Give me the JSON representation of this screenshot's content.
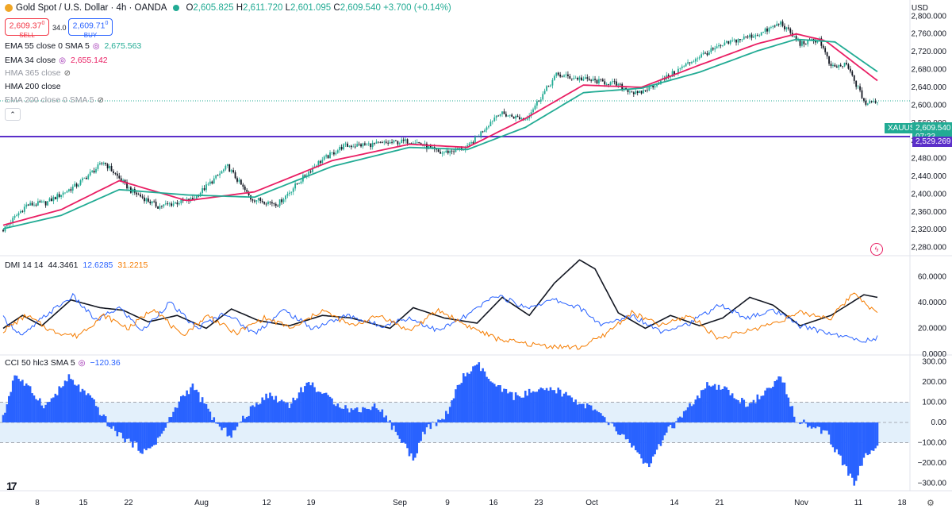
{
  "header": {
    "symbol": "Gold Spot / U.S. Dollar · 4h · OANDA",
    "ohlc": {
      "o_key": "O",
      "o": "2,605.825",
      "h_key": "H",
      "h": "2,611.720",
      "l_key": "L",
      "l": "2,601.095",
      "c_key": "C",
      "c": "2,609.540",
      "change": "+3.700 (+0.14%)"
    },
    "sell_price": "2,609.37",
    "sell_sup": "0",
    "sell_label": "SELL",
    "spread": "34.0",
    "buy_price": "2,609.71",
    "buy_sup": "0",
    "buy_label": "BUY",
    "currency": "USD"
  },
  "legends": {
    "ema55": {
      "label": "EMA 55 close 0 SMA 5",
      "value": "2,675.563"
    },
    "ema34": {
      "label": "EMA 34 close",
      "value": "2,655.142"
    },
    "hma365": {
      "label": "HMA 365 close"
    },
    "hma200": {
      "label": "HMA 200 close"
    },
    "ema200": {
      "label": "EMA 200 close 0 SMA 5"
    },
    "dmi": {
      "label": "DMI 14 14",
      "adx": "44.3461",
      "plus_di": "12.6285",
      "minus_di": "31.2215"
    },
    "cci": {
      "label": "CCI 50 hlc3 SMA 5",
      "value": "−120.36"
    }
  },
  "colors": {
    "up": "#22ab94",
    "down": "#131722",
    "ema34": "#e91e63",
    "ema55": "#22ab94",
    "hline": "#5b2fc9",
    "adx": "#131722",
    "plus_di": "#2962ff",
    "minus_di": "#f57c00",
    "cci": "#2962ff",
    "band": "#e3f0fb"
  },
  "tags": {
    "symbol_tag": "XAUUSD",
    "last_price": "2,609.540",
    "countdown": "07:33",
    "hline_price": "2,529.269"
  },
  "icons": [
    "tradingview-logo-icon",
    "settings-gear-icon",
    "eye-hidden-icon",
    "lightning-icon",
    "collapse-icon"
  ],
  "chart_data": [
    {
      "type": "candlestick",
      "title": "Gold Spot / U.S. Dollar · 4h · OANDA",
      "ylim": [
        2265,
        2822
      ],
      "y_ticks": [
        "2,800.000",
        "2,760.000",
        "2,720.000",
        "2,680.000",
        "2,640.000",
        "2,600.000",
        "2,560.000",
        "2,520.000",
        "2,480.000",
        "2,440.000",
        "2,400.000",
        "2,360.000",
        "2,320.000",
        "2,280.000"
      ],
      "x_ticks": [
        "8",
        "15",
        "22",
        "Aug",
        "12",
        "19",
        "Sep",
        "9",
        "16",
        "23",
        "Oct",
        "14",
        "21",
        "Nov",
        "11",
        "18"
      ],
      "close_path": [
        {
          "i": 0,
          "v": 2320
        },
        {
          "i": 12,
          "v": 2375
        },
        {
          "i": 22,
          "v": 2380
        },
        {
          "i": 38,
          "v": 2420
        },
        {
          "i": 52,
          "v": 2472
        },
        {
          "i": 66,
          "v": 2408
        },
        {
          "i": 80,
          "v": 2372
        },
        {
          "i": 98,
          "v": 2388
        },
        {
          "i": 116,
          "v": 2462
        },
        {
          "i": 128,
          "v": 2390
        },
        {
          "i": 142,
          "v": 2378
        },
        {
          "i": 162,
          "v": 2468
        },
        {
          "i": 176,
          "v": 2508
        },
        {
          "i": 192,
          "v": 2512
        },
        {
          "i": 212,
          "v": 2520
        },
        {
          "i": 226,
          "v": 2492
        },
        {
          "i": 240,
          "v": 2504
        },
        {
          "i": 256,
          "v": 2582
        },
        {
          "i": 270,
          "v": 2568
        },
        {
          "i": 286,
          "v": 2668
        },
        {
          "i": 300,
          "v": 2658
        },
        {
          "i": 316,
          "v": 2648
        },
        {
          "i": 328,
          "v": 2624
        },
        {
          "i": 344,
          "v": 2665
        },
        {
          "i": 360,
          "v": 2710
        },
        {
          "i": 376,
          "v": 2742
        },
        {
          "i": 392,
          "v": 2762
        },
        {
          "i": 402,
          "v": 2785
        },
        {
          "i": 412,
          "v": 2738
        },
        {
          "i": 422,
          "v": 2748
        },
        {
          "i": 428,
          "v": 2684
        },
        {
          "i": 436,
          "v": 2690
        },
        {
          "i": 446,
          "v": 2602
        },
        {
          "i": 452,
          "v": 2610
        }
      ],
      "series": [
        {
          "name": "EMA 34 close",
          "color": "#e91e63",
          "points": [
            {
              "i": 0,
              "v": 2330
            },
            {
              "i": 30,
              "v": 2365
            },
            {
              "i": 60,
              "v": 2430
            },
            {
              "i": 95,
              "v": 2385
            },
            {
              "i": 130,
              "v": 2405
            },
            {
              "i": 170,
              "v": 2475
            },
            {
              "i": 210,
              "v": 2512
            },
            {
              "i": 240,
              "v": 2505
            },
            {
              "i": 270,
              "v": 2570
            },
            {
              "i": 300,
              "v": 2645
            },
            {
              "i": 330,
              "v": 2640
            },
            {
              "i": 360,
              "v": 2690
            },
            {
              "i": 390,
              "v": 2738
            },
            {
              "i": 410,
              "v": 2760
            },
            {
              "i": 425,
              "v": 2745
            },
            {
              "i": 452,
              "v": 2655
            }
          ]
        },
        {
          "name": "EMA 55 close 0 SMA 5",
          "color": "#22ab94",
          "points": [
            {
              "i": 0,
              "v": 2322
            },
            {
              "i": 30,
              "v": 2352
            },
            {
              "i": 60,
              "v": 2410
            },
            {
              "i": 95,
              "v": 2398
            },
            {
              "i": 130,
              "v": 2393
            },
            {
              "i": 170,
              "v": 2462
            },
            {
              "i": 210,
              "v": 2505
            },
            {
              "i": 240,
              "v": 2500
            },
            {
              "i": 270,
              "v": 2550
            },
            {
              "i": 300,
              "v": 2628
            },
            {
              "i": 330,
              "v": 2638
            },
            {
              "i": 360,
              "v": 2674
            },
            {
              "i": 390,
              "v": 2722
            },
            {
              "i": 410,
              "v": 2748
            },
            {
              "i": 430,
              "v": 2742
            },
            {
              "i": 452,
              "v": 2675
            }
          ]
        }
      ],
      "hline": {
        "value": 2529.269,
        "label": "2,529.269"
      },
      "last": {
        "value": 2609.54,
        "label": "2,609.540"
      }
    },
    {
      "type": "line",
      "title": "DMI 14 14",
      "ylim": [
        0,
        75
      ],
      "y_ticks": [
        "60.0000",
        "40.0000",
        "20.0000",
        "0.0000"
      ],
      "series": [
        {
          "name": "ADX",
          "color": "#131722",
          "width": 1.6,
          "points": [
            {
              "i": 0,
              "v": 20
            },
            {
              "i": 10,
              "v": 30
            },
            {
              "i": 20,
              "v": 22
            },
            {
              "i": 35,
              "v": 42
            },
            {
              "i": 50,
              "v": 36
            },
            {
              "i": 62,
              "v": 34
            },
            {
              "i": 75,
              "v": 25
            },
            {
              "i": 90,
              "v": 30
            },
            {
              "i": 105,
              "v": 20
            },
            {
              "i": 118,
              "v": 35
            },
            {
              "i": 132,
              "v": 26
            },
            {
              "i": 148,
              "v": 22
            },
            {
              "i": 165,
              "v": 30
            },
            {
              "i": 180,
              "v": 28
            },
            {
              "i": 200,
              "v": 20
            },
            {
              "i": 212,
              "v": 36
            },
            {
              "i": 228,
              "v": 28
            },
            {
              "i": 245,
              "v": 24
            },
            {
              "i": 258,
              "v": 44
            },
            {
              "i": 272,
              "v": 30
            },
            {
              "i": 285,
              "v": 55
            },
            {
              "i": 298,
              "v": 73
            },
            {
              "i": 306,
              "v": 66
            },
            {
              "i": 318,
              "v": 32
            },
            {
              "i": 332,
              "v": 20
            },
            {
              "i": 345,
              "v": 30
            },
            {
              "i": 360,
              "v": 22
            },
            {
              "i": 372,
              "v": 28
            },
            {
              "i": 386,
              "v": 44
            },
            {
              "i": 398,
              "v": 38
            },
            {
              "i": 412,
              "v": 22
            },
            {
              "i": 428,
              "v": 30
            },
            {
              "i": 445,
              "v": 46
            },
            {
              "i": 452,
              "v": 44
            }
          ]
        },
        {
          "name": "+DI",
          "color": "#2962ff",
          "width": 1,
          "points": [
            {
              "i": 0,
              "v": 28
            },
            {
              "i": 10,
              "v": 14
            },
            {
              "i": 22,
              "v": 30
            },
            {
              "i": 36,
              "v": 45
            },
            {
              "i": 48,
              "v": 26
            },
            {
              "i": 60,
              "v": 36
            },
            {
              "i": 72,
              "v": 18
            },
            {
              "i": 86,
              "v": 40
            },
            {
              "i": 100,
              "v": 20
            },
            {
              "i": 115,
              "v": 32
            },
            {
              "i": 130,
              "v": 16
            },
            {
              "i": 145,
              "v": 34
            },
            {
              "i": 160,
              "v": 20
            },
            {
              "i": 178,
              "v": 30
            },
            {
              "i": 195,
              "v": 22
            },
            {
              "i": 210,
              "v": 28
            },
            {
              "i": 225,
              "v": 18
            },
            {
              "i": 240,
              "v": 30
            },
            {
              "i": 255,
              "v": 46
            },
            {
              "i": 270,
              "v": 36
            },
            {
              "i": 285,
              "v": 42
            },
            {
              "i": 298,
              "v": 36
            },
            {
              "i": 310,
              "v": 22
            },
            {
              "i": 325,
              "v": 30
            },
            {
              "i": 340,
              "v": 18
            },
            {
              "i": 355,
              "v": 24
            },
            {
              "i": 370,
              "v": 38
            },
            {
              "i": 385,
              "v": 28
            },
            {
              "i": 398,
              "v": 34
            },
            {
              "i": 412,
              "v": 22
            },
            {
              "i": 428,
              "v": 16
            },
            {
              "i": 445,
              "v": 10
            },
            {
              "i": 452,
              "v": 13
            }
          ]
        },
        {
          "name": "−DI",
          "color": "#f57c00",
          "width": 1,
          "points": [
            {
              "i": 0,
              "v": 18
            },
            {
              "i": 12,
              "v": 30
            },
            {
              "i": 25,
              "v": 18
            },
            {
              "i": 38,
              "v": 14
            },
            {
              "i": 52,
              "v": 30
            },
            {
              "i": 65,
              "v": 20
            },
            {
              "i": 78,
              "v": 36
            },
            {
              "i": 92,
              "v": 14
            },
            {
              "i": 106,
              "v": 30
            },
            {
              "i": 120,
              "v": 16
            },
            {
              "i": 135,
              "v": 28
            },
            {
              "i": 150,
              "v": 20
            },
            {
              "i": 165,
              "v": 34
            },
            {
              "i": 180,
              "v": 22
            },
            {
              "i": 195,
              "v": 30
            },
            {
              "i": 210,
              "v": 18
            },
            {
              "i": 225,
              "v": 34
            },
            {
              "i": 240,
              "v": 22
            },
            {
              "i": 255,
              "v": 12
            },
            {
              "i": 270,
              "v": 8
            },
            {
              "i": 285,
              "v": 6
            },
            {
              "i": 298,
              "v": 5
            },
            {
              "i": 310,
              "v": 14
            },
            {
              "i": 325,
              "v": 32
            },
            {
              "i": 340,
              "v": 22
            },
            {
              "i": 355,
              "v": 30
            },
            {
              "i": 370,
              "v": 12
            },
            {
              "i": 385,
              "v": 18
            },
            {
              "i": 398,
              "v": 24
            },
            {
              "i": 412,
              "v": 32
            },
            {
              "i": 428,
              "v": 28
            },
            {
              "i": 440,
              "v": 48
            },
            {
              "i": 452,
              "v": 31
            }
          ]
        }
      ]
    },
    {
      "type": "bar",
      "title": "CCI 50 hlc3 SMA 5",
      "ylim": [
        -330,
        330
      ],
      "y_ticks": [
        "300.00",
        "200.00",
        "100.00",
        "0.00",
        "−100.00",
        "−200.00",
        "−300.00"
      ],
      "band": [
        -100,
        100
      ],
      "points": [
        {
          "i": 0,
          "v": 20
        },
        {
          "i": 6,
          "v": 240
        },
        {
          "i": 14,
          "v": 160
        },
        {
          "i": 22,
          "v": 80
        },
        {
          "i": 34,
          "v": 220
        },
        {
          "i": 46,
          "v": 110
        },
        {
          "i": 56,
          "v": -30
        },
        {
          "i": 66,
          "v": -100
        },
        {
          "i": 74,
          "v": -150
        },
        {
          "i": 82,
          "v": -60
        },
        {
          "i": 92,
          "v": 120
        },
        {
          "i": 98,
          "v": 180
        },
        {
          "i": 106,
          "v": 60
        },
        {
          "i": 112,
          "v": -30
        },
        {
          "i": 118,
          "v": -60
        },
        {
          "i": 126,
          "v": 40
        },
        {
          "i": 136,
          "v": 140
        },
        {
          "i": 148,
          "v": 90
        },
        {
          "i": 158,
          "v": 200
        },
        {
          "i": 168,
          "v": 120
        },
        {
          "i": 180,
          "v": 60
        },
        {
          "i": 194,
          "v": 80
        },
        {
          "i": 204,
          "v": -60
        },
        {
          "i": 212,
          "v": -180
        },
        {
          "i": 218,
          "v": -40
        },
        {
          "i": 228,
          "v": 20
        },
        {
          "i": 238,
          "v": 230
        },
        {
          "i": 246,
          "v": 280
        },
        {
          "i": 254,
          "v": 180
        },
        {
          "i": 264,
          "v": 130
        },
        {
          "i": 274,
          "v": 150
        },
        {
          "i": 286,
          "v": 160
        },
        {
          "i": 296,
          "v": 110
        },
        {
          "i": 306,
          "v": 60
        },
        {
          "i": 316,
          "v": -30
        },
        {
          "i": 326,
          "v": -120
        },
        {
          "i": 334,
          "v": -230
        },
        {
          "i": 342,
          "v": -60
        },
        {
          "i": 352,
          "v": 40
        },
        {
          "i": 364,
          "v": 180
        },
        {
          "i": 374,
          "v": 160
        },
        {
          "i": 384,
          "v": 90
        },
        {
          "i": 394,
          "v": 140
        },
        {
          "i": 402,
          "v": 230
        },
        {
          "i": 410,
          "v": 20
        },
        {
          "i": 418,
          "v": -20
        },
        {
          "i": 426,
          "v": -60
        },
        {
          "i": 434,
          "v": -200
        },
        {
          "i": 440,
          "v": -300
        },
        {
          "i": 446,
          "v": -160
        },
        {
          "i": 452,
          "v": -120
        }
      ]
    }
  ]
}
